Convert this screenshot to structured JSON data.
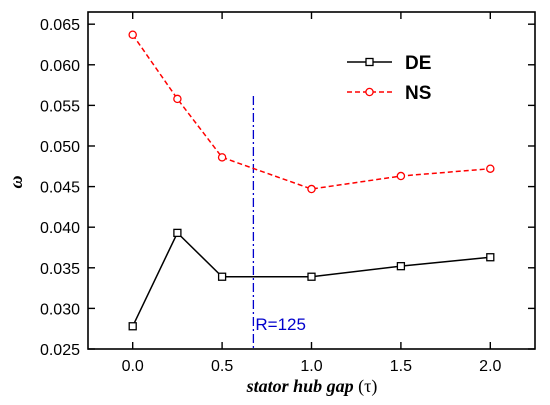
{
  "chart_data": {
    "type": "line",
    "title": "",
    "xlabel": "stator hub gap",
    "xlabel_unit": "(τ)",
    "ylabel": "ω",
    "xlim": [
      -0.25,
      2.25
    ],
    "ylim": [
      0.025,
      0.0665
    ],
    "x_ticks": [
      0.0,
      0.5,
      1.0,
      1.5,
      2.0
    ],
    "x_tick_labels": [
      "0.0",
      "0.5",
      "1.0",
      "1.5",
      "2.0"
    ],
    "y_ticks": [
      0.025,
      0.03,
      0.035,
      0.04,
      0.045,
      0.05,
      0.055,
      0.06,
      0.065
    ],
    "y_tick_labels": [
      "0.025",
      "0.030",
      "0.035",
      "0.040",
      "0.045",
      "0.050",
      "0.055",
      "0.060",
      "0.065"
    ],
    "grid": false,
    "legend_position": "top-right",
    "series": [
      {
        "name": "DE",
        "color": "#000000",
        "line_style": "solid",
        "marker": "square",
        "x": [
          0.0,
          0.25,
          0.5,
          1.0,
          1.5,
          2.0
        ],
        "y": [
          0.0278,
          0.0393,
          0.0339,
          0.0339,
          0.0352,
          0.0363
        ]
      },
      {
        "name": "NS",
        "color": "#ff0000",
        "line_style": "dashed",
        "marker": "circle",
        "x": [
          0.0,
          0.25,
          0.5,
          1.0,
          1.5,
          2.0
        ],
        "y": [
          0.0637,
          0.0558,
          0.0486,
          0.0447,
          0.0463,
          0.0472
        ]
      }
    ],
    "annotations": [
      {
        "type": "vline",
        "x": 0.675,
        "color": "#0000cc",
        "line_style": "dash-dot",
        "label": "R=125"
      }
    ]
  }
}
